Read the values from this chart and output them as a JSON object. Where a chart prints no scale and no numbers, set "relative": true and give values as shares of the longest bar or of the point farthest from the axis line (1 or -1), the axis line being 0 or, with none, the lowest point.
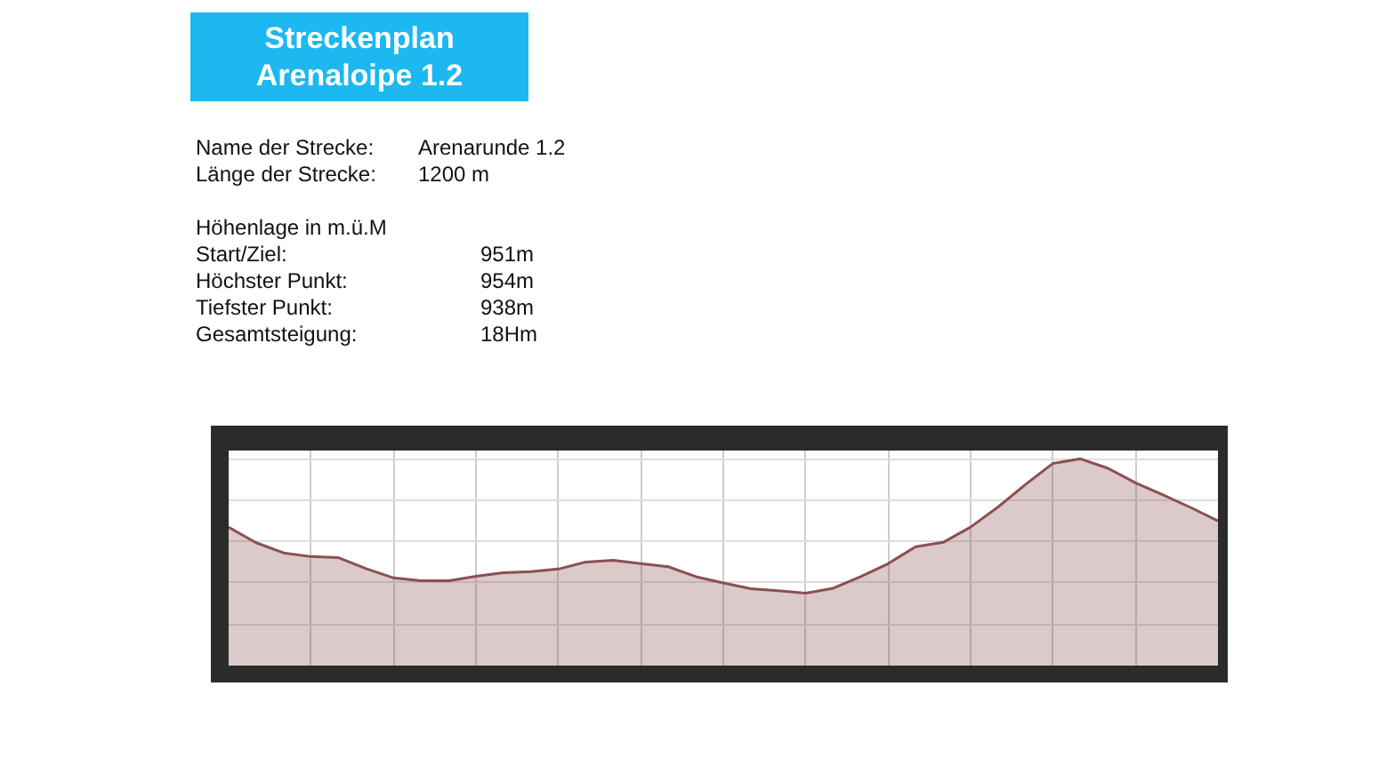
{
  "chart_data": {
    "type": "area",
    "title": "Streckenplan\nArenaloipe 1.2",
    "annotations": [
      "Name der Strecke:  Arenarunde 1.2",
      "Länge der Strecke:  1200 m",
      "Höhenlage in m.ü.M",
      "Start/Ziel: 951m",
      "Höchster Punkt: 954m",
      "Tiefster Punkt: 938m",
      "Gesamtsteigung: 18Hm"
    ],
    "categories": [
      null,
      null,
      null,
      null,
      null,
      null,
      null,
      null,
      null,
      null,
      null,
      null,
      null,
      null,
      null,
      null,
      null,
      null,
      null,
      null,
      null,
      null,
      null,
      null,
      null,
      null,
      null,
      null,
      null,
      null,
      null,
      null,
      null,
      null,
      null,
      null,
      null
    ],
    "relative": true,
    "grid": true,
    "tick_labels": false,
    "series": [
      {
        "color": "#8b4f52",
        "values": [
          0.669,
          0.594,
          0.545,
          0.527,
          0.522,
          0.469,
          0.424,
          0.41,
          0.41,
          0.432,
          0.449,
          0.454,
          0.467,
          0.501,
          0.509,
          0.493,
          0.478,
          0.43,
          0.4,
          0.372,
          0.362,
          0.35,
          0.374,
          0.43,
          0.493,
          0.575,
          0.596,
          0.67,
          0.767,
          0.876,
          0.978,
          1.0,
          0.954,
          0.884,
          0.826,
          0.765,
          0.7
        ]
      }
    ]
  }
}
